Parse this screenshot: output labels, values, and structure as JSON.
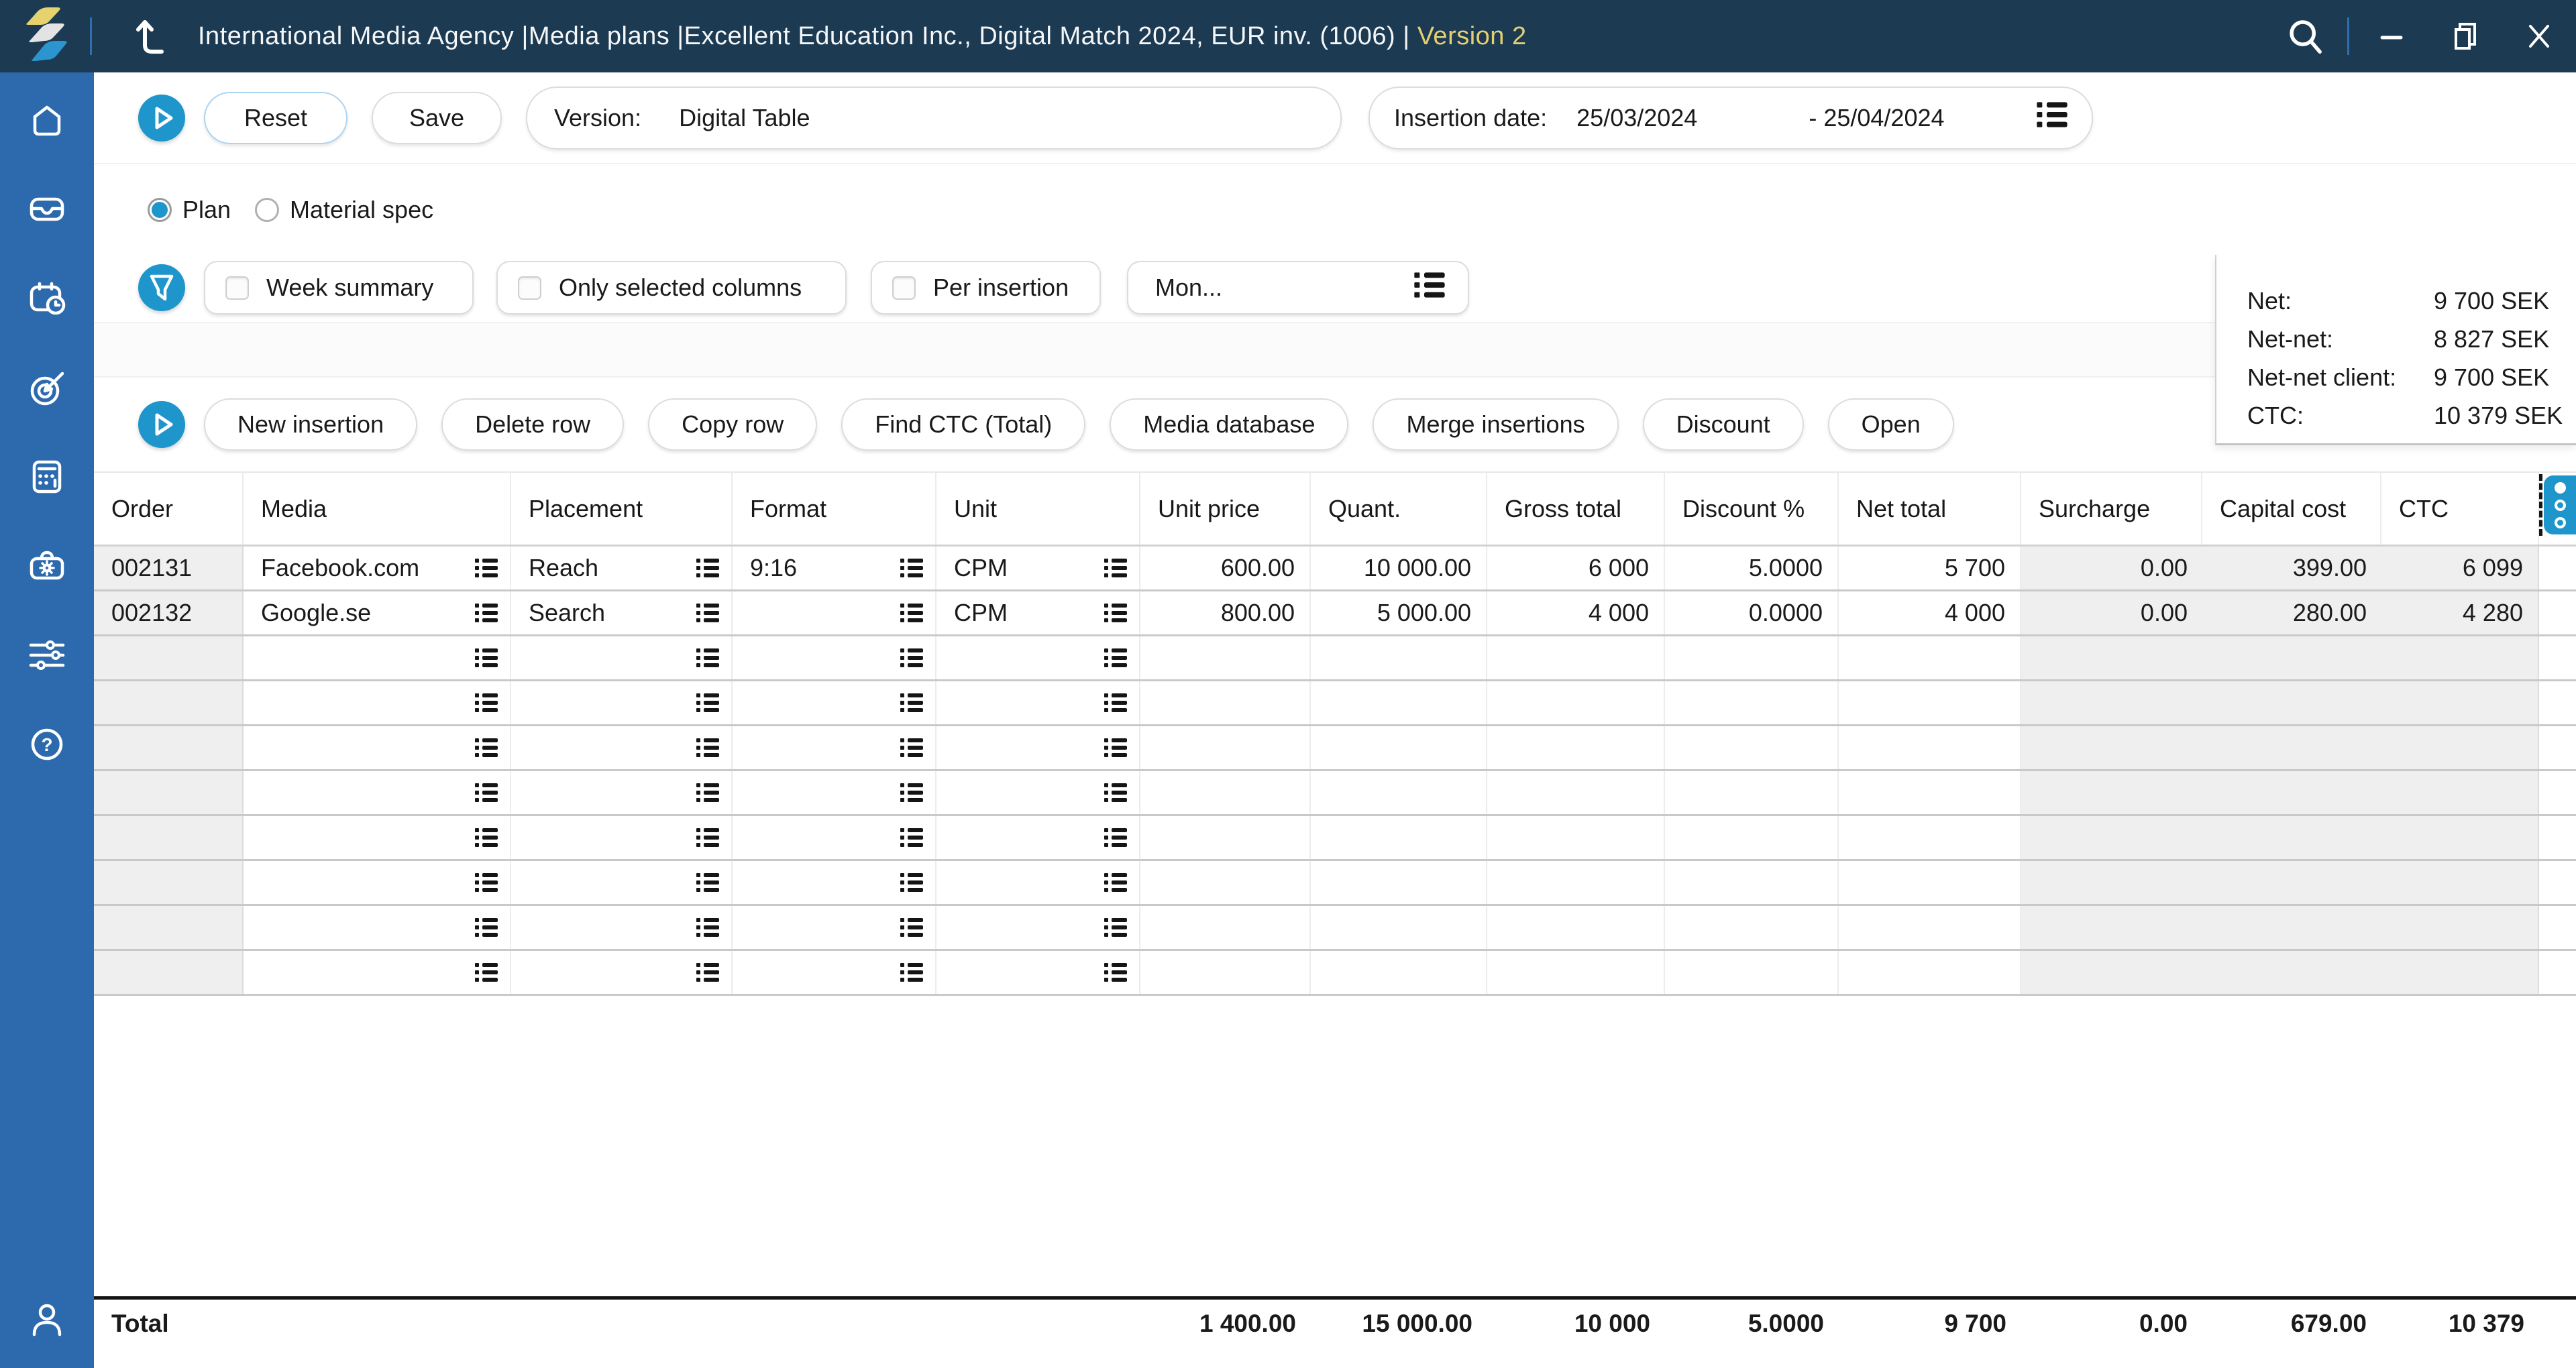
{
  "colors": {
    "titlebar": "#1c3a52",
    "sidebar_blue": "#2d6aad",
    "accent_blue": "#1e96cc",
    "version_yellow": "#e5cf73",
    "shaded_cell": "#efefef"
  },
  "titlebar": {
    "title_main": "International Media Agency |Media plans |Excellent Education Inc., Digital Match 2024, EUR inv. (1006) | ",
    "title_version": "Version 2",
    "window_control_icons": [
      "search",
      "minimize",
      "restore",
      "close"
    ],
    "nav_icon": "arrow-up"
  },
  "sidebar": {
    "icons": [
      "home",
      "inbox",
      "calendar",
      "target",
      "calculator",
      "toolbox",
      "sliders",
      "help"
    ],
    "bottom_icon": "user"
  },
  "toolbar": {
    "reset_label": "Reset",
    "save_label": "Save",
    "version_label": "Version:",
    "version_value": "Digital Table",
    "insertion_date_label": "Insertion date:",
    "insertion_date_from": "25/03/2024",
    "insertion_date_to": "- 25/04/2024"
  },
  "view_options": {
    "plan_label": "Plan",
    "material_spec_label": "Material spec",
    "selected": "Plan"
  },
  "filters": {
    "week_summary_label": "Week summary",
    "only_selected_columns_label": "Only selected columns",
    "per_insertion_label": "Per insertion",
    "month_dropdown_value": "Mon...",
    "checkbox_states": {
      "week_summary": false,
      "only_selected_columns": false,
      "per_insertion": false
    }
  },
  "actions": {
    "buttons": [
      "New insertion",
      "Delete row",
      "Copy row",
      "Find CTC (Total)",
      "Media database",
      "Merge insertions",
      "Discount",
      "Open"
    ]
  },
  "summary": {
    "rows": [
      {
        "label": "Net:",
        "value": "9 700 SEK"
      },
      {
        "label": "Net-net:",
        "value": "8 827 SEK"
      },
      {
        "label": "Net-net client:",
        "value": "9 700 SEK"
      },
      {
        "label": "CTC:",
        "value": "10 379 SEK"
      }
    ]
  },
  "table": {
    "columns": [
      {
        "key": "order",
        "label": "Order",
        "align": "left",
        "shaded": true,
        "icon": false
      },
      {
        "key": "media",
        "label": "Media",
        "align": "left",
        "shaded": false,
        "icon": true
      },
      {
        "key": "placement",
        "label": "Placement",
        "align": "left",
        "shaded": false,
        "icon": true
      },
      {
        "key": "format",
        "label": "Format",
        "align": "left",
        "shaded": false,
        "icon": true
      },
      {
        "key": "unit",
        "label": "Unit",
        "align": "left",
        "shaded": false,
        "icon": true
      },
      {
        "key": "unit_price",
        "label": "Unit price",
        "align": "right",
        "shaded": false,
        "icon": false
      },
      {
        "key": "quant",
        "label": "Quant.",
        "align": "right",
        "shaded": false,
        "icon": false
      },
      {
        "key": "gross_total",
        "label": "Gross total",
        "align": "right",
        "shaded": false,
        "icon": false
      },
      {
        "key": "discount_pct",
        "label": "Discount %",
        "align": "right",
        "shaded": false,
        "icon": false
      },
      {
        "key": "net_total",
        "label": "Net total",
        "align": "right",
        "shaded": false,
        "icon": false
      },
      {
        "key": "surcharge",
        "label": "Surcharge",
        "align": "right",
        "shaded": true,
        "icon": false
      },
      {
        "key": "capital_cost",
        "label": "Capital cost",
        "align": "right",
        "shaded": true,
        "icon": false
      },
      {
        "key": "ctc",
        "label": "CTC",
        "align": "right",
        "shaded": true,
        "icon": false
      }
    ],
    "rows": [
      {
        "order": "002131",
        "media": "Facebook.com",
        "placement": "Reach",
        "format": "9:16",
        "unit": "CPM",
        "unit_price": "600.00",
        "quant": "10 000.00",
        "gross_total": "6 000",
        "discount_pct": "5.0000",
        "net_total": "5 700",
        "surcharge": "0.00",
        "capital_cost": "399.00",
        "ctc": "6 099"
      },
      {
        "order": "002132",
        "media": "Google.se",
        "placement": "Search",
        "format": "",
        "unit": "CPM",
        "unit_price": "800.00",
        "quant": "5 000.00",
        "gross_total": "4 000",
        "discount_pct": "0.0000",
        "net_total": "4 000",
        "surcharge": "0.00",
        "capital_cost": "280.00",
        "ctc": "4 280"
      },
      {},
      {},
      {},
      {},
      {},
      {},
      {},
      {}
    ],
    "total": {
      "order": "Total",
      "media": "",
      "placement": "",
      "format": "",
      "unit": "",
      "unit_price": "1 400.00",
      "quant": "15 000.00",
      "gross_total": "10 000",
      "discount_pct": "5.0000",
      "net_total": "9 700",
      "surcharge": "0.00",
      "capital_cost": "679.00",
      "ctc": "10 379"
    }
  }
}
